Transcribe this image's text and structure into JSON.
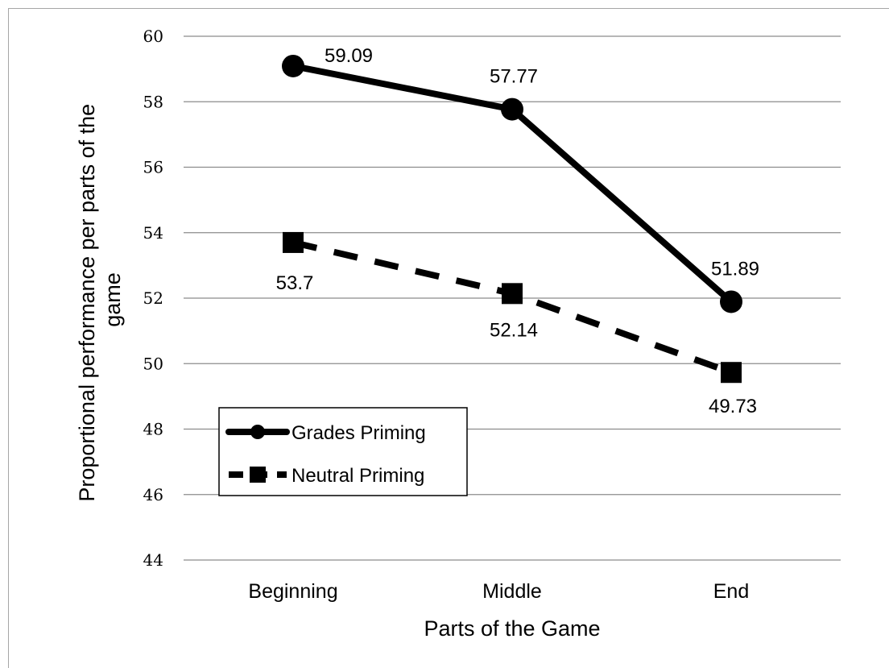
{
  "chart_data": {
    "type": "line",
    "categories": [
      "Beginning",
      "Middle",
      "End"
    ],
    "series": [
      {
        "name": "Grades Priming",
        "values": [
          59.09,
          57.77,
          51.89
        ],
        "labels": [
          "59.09",
          "57.77",
          "51.89"
        ],
        "style": "solid",
        "marker": "circle",
        "color": "#000000"
      },
      {
        "name": "Neutral Priming",
        "values": [
          53.7,
          52.14,
          49.73
        ],
        "labels": [
          "53.7",
          "52.14",
          "49.73"
        ],
        "style": "dashed",
        "marker": "square",
        "color": "#000000"
      }
    ],
    "xlabel": "Parts of the Game",
    "ylabel_lines": [
      "Proportional performance per parts of the",
      "game"
    ],
    "ylim": [
      44,
      60
    ],
    "yticks": [
      44,
      46,
      48,
      50,
      52,
      54,
      56,
      58,
      60
    ],
    "grid": true,
    "legend_position": "bottom-left"
  }
}
